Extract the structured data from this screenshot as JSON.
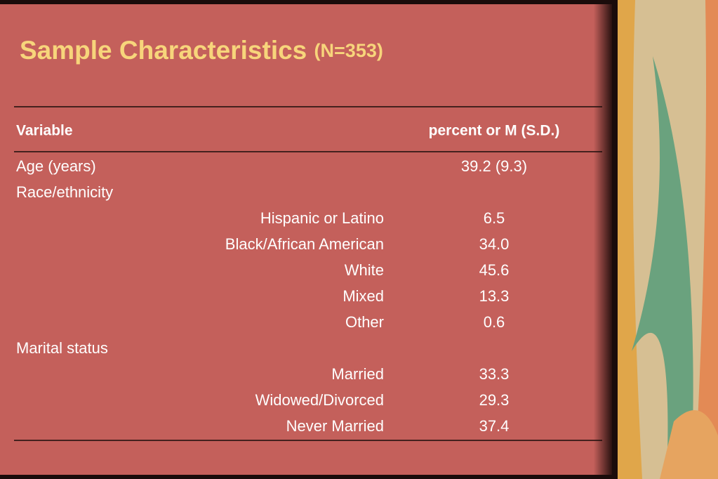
{
  "title": {
    "main": "Sample Characteristics",
    "note": "(N=353)"
  },
  "table": {
    "header": [
      "Variable",
      "percent or M (S.D.)"
    ],
    "rows": [
      {
        "label": "Age (years)",
        "value": "39.2 (9.3)"
      },
      {
        "label": "Race/ethnicity"
      },
      {
        "sublabel": "Hispanic or Latino",
        "value": "6.5"
      },
      {
        "sublabel": "Black/African American",
        "value": "34.0"
      },
      {
        "sublabel": "White",
        "value": "45.6"
      },
      {
        "sublabel": "Mixed",
        "value": "13.3"
      },
      {
        "sublabel": "Other",
        "value": "0.6"
      },
      {
        "label": "Marital status"
      },
      {
        "sublabel": "Married",
        "value": "33.3"
      },
      {
        "sublabel": "Widowed/Divorced",
        "value": "29.3"
      },
      {
        "sublabel": "Never Married",
        "value": "37.4"
      }
    ]
  }
}
